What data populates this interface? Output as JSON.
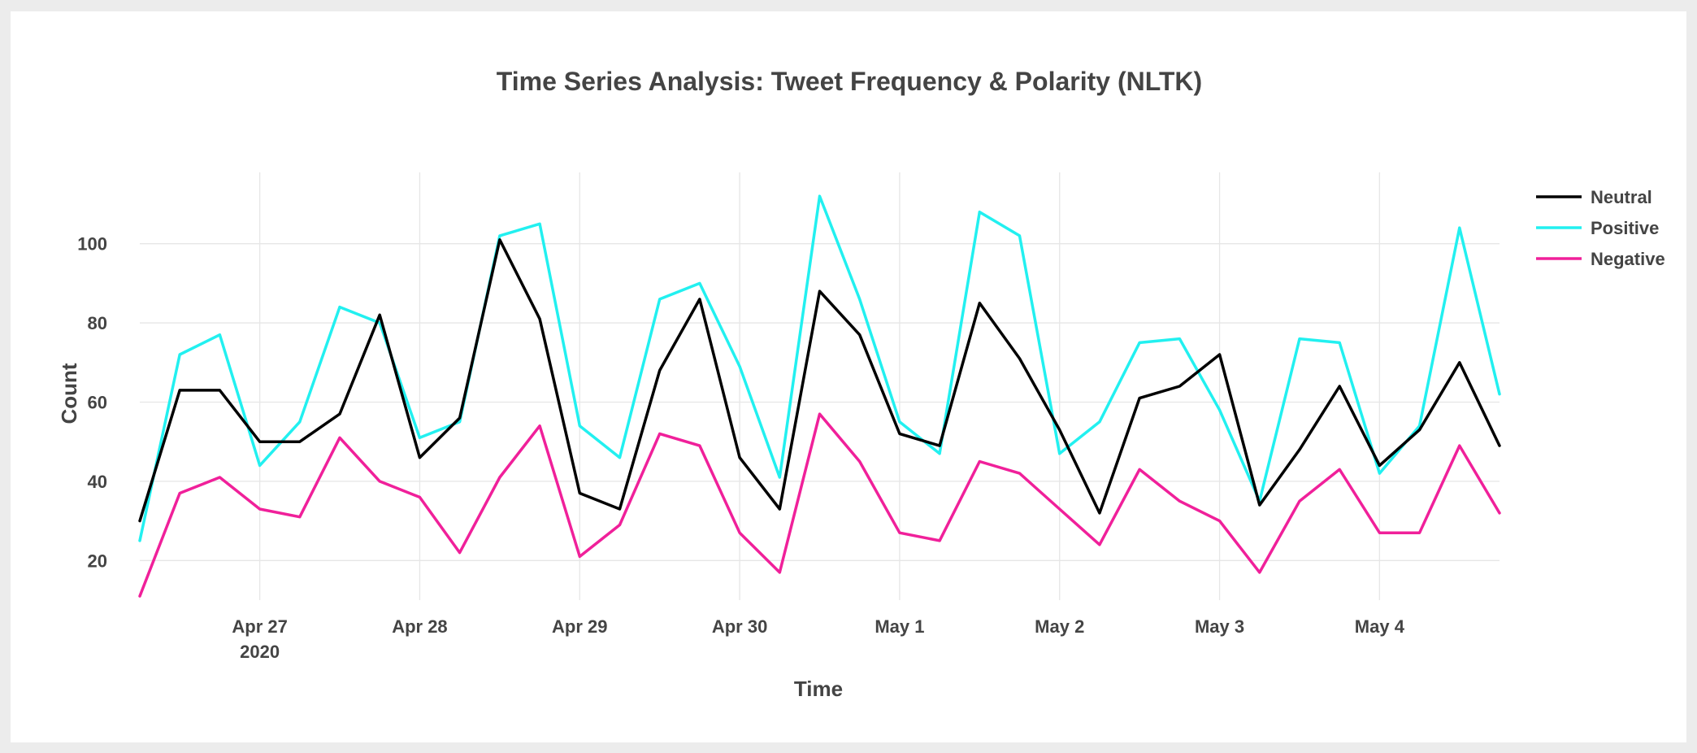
{
  "chart_data": {
    "type": "line",
    "title": "Time Series Analysis: Tweet Frequency & Polarity (NLTK)",
    "xlabel": "Time",
    "ylabel": "Count",
    "x_start": "2020-04-26T06:00",
    "x_step_hours": 6,
    "x_range": [
      "2020-04-26T06:00",
      "2020-05-04T18:00"
    ],
    "ylim": [
      10,
      118
    ],
    "y_ticks": [
      20,
      40,
      60,
      80,
      100
    ],
    "x_ticks": [
      {
        "date": "2020-04-27",
        "label": "Apr 27",
        "sublabel": "2020"
      },
      {
        "date": "2020-04-28",
        "label": "Apr 28"
      },
      {
        "date": "2020-04-29",
        "label": "Apr 29"
      },
      {
        "date": "2020-04-30",
        "label": "Apr 30"
      },
      {
        "date": "2020-05-01",
        "label": "May 1"
      },
      {
        "date": "2020-05-02",
        "label": "May 2"
      },
      {
        "date": "2020-05-03",
        "label": "May 3"
      },
      {
        "date": "2020-05-04",
        "label": "May 4"
      }
    ],
    "grid": true,
    "legend_position": "top-right",
    "series": [
      {
        "name": "Neutral",
        "color": "#000000",
        "values": [
          30,
          63,
          63,
          50,
          50,
          57,
          82,
          46,
          56,
          101,
          81,
          37,
          33,
          68,
          86,
          46,
          33,
          88,
          77,
          52,
          49,
          85,
          71,
          53,
          32,
          61,
          64,
          72,
          34,
          48,
          64,
          44,
          53,
          70,
          49
        ]
      },
      {
        "name": "Positive",
        "color": "#22f0f0",
        "values": [
          25,
          72,
          77,
          44,
          55,
          84,
          80,
          51,
          55,
          102,
          105,
          54,
          46,
          86,
          90,
          69,
          41,
          112,
          86,
          55,
          47,
          108,
          102,
          47,
          55,
          75,
          76,
          58,
          35,
          76,
          75,
          42,
          54,
          104,
          62
        ]
      },
      {
        "name": "Negative",
        "color": "#f0209a",
        "values": [
          11,
          37,
          41,
          33,
          31,
          51,
          40,
          36,
          22,
          41,
          54,
          21,
          29,
          52,
          49,
          27,
          17,
          57,
          45,
          27,
          25,
          45,
          42,
          33,
          24,
          43,
          35,
          30,
          17,
          35,
          43,
          27,
          27,
          49,
          32
        ]
      }
    ]
  }
}
